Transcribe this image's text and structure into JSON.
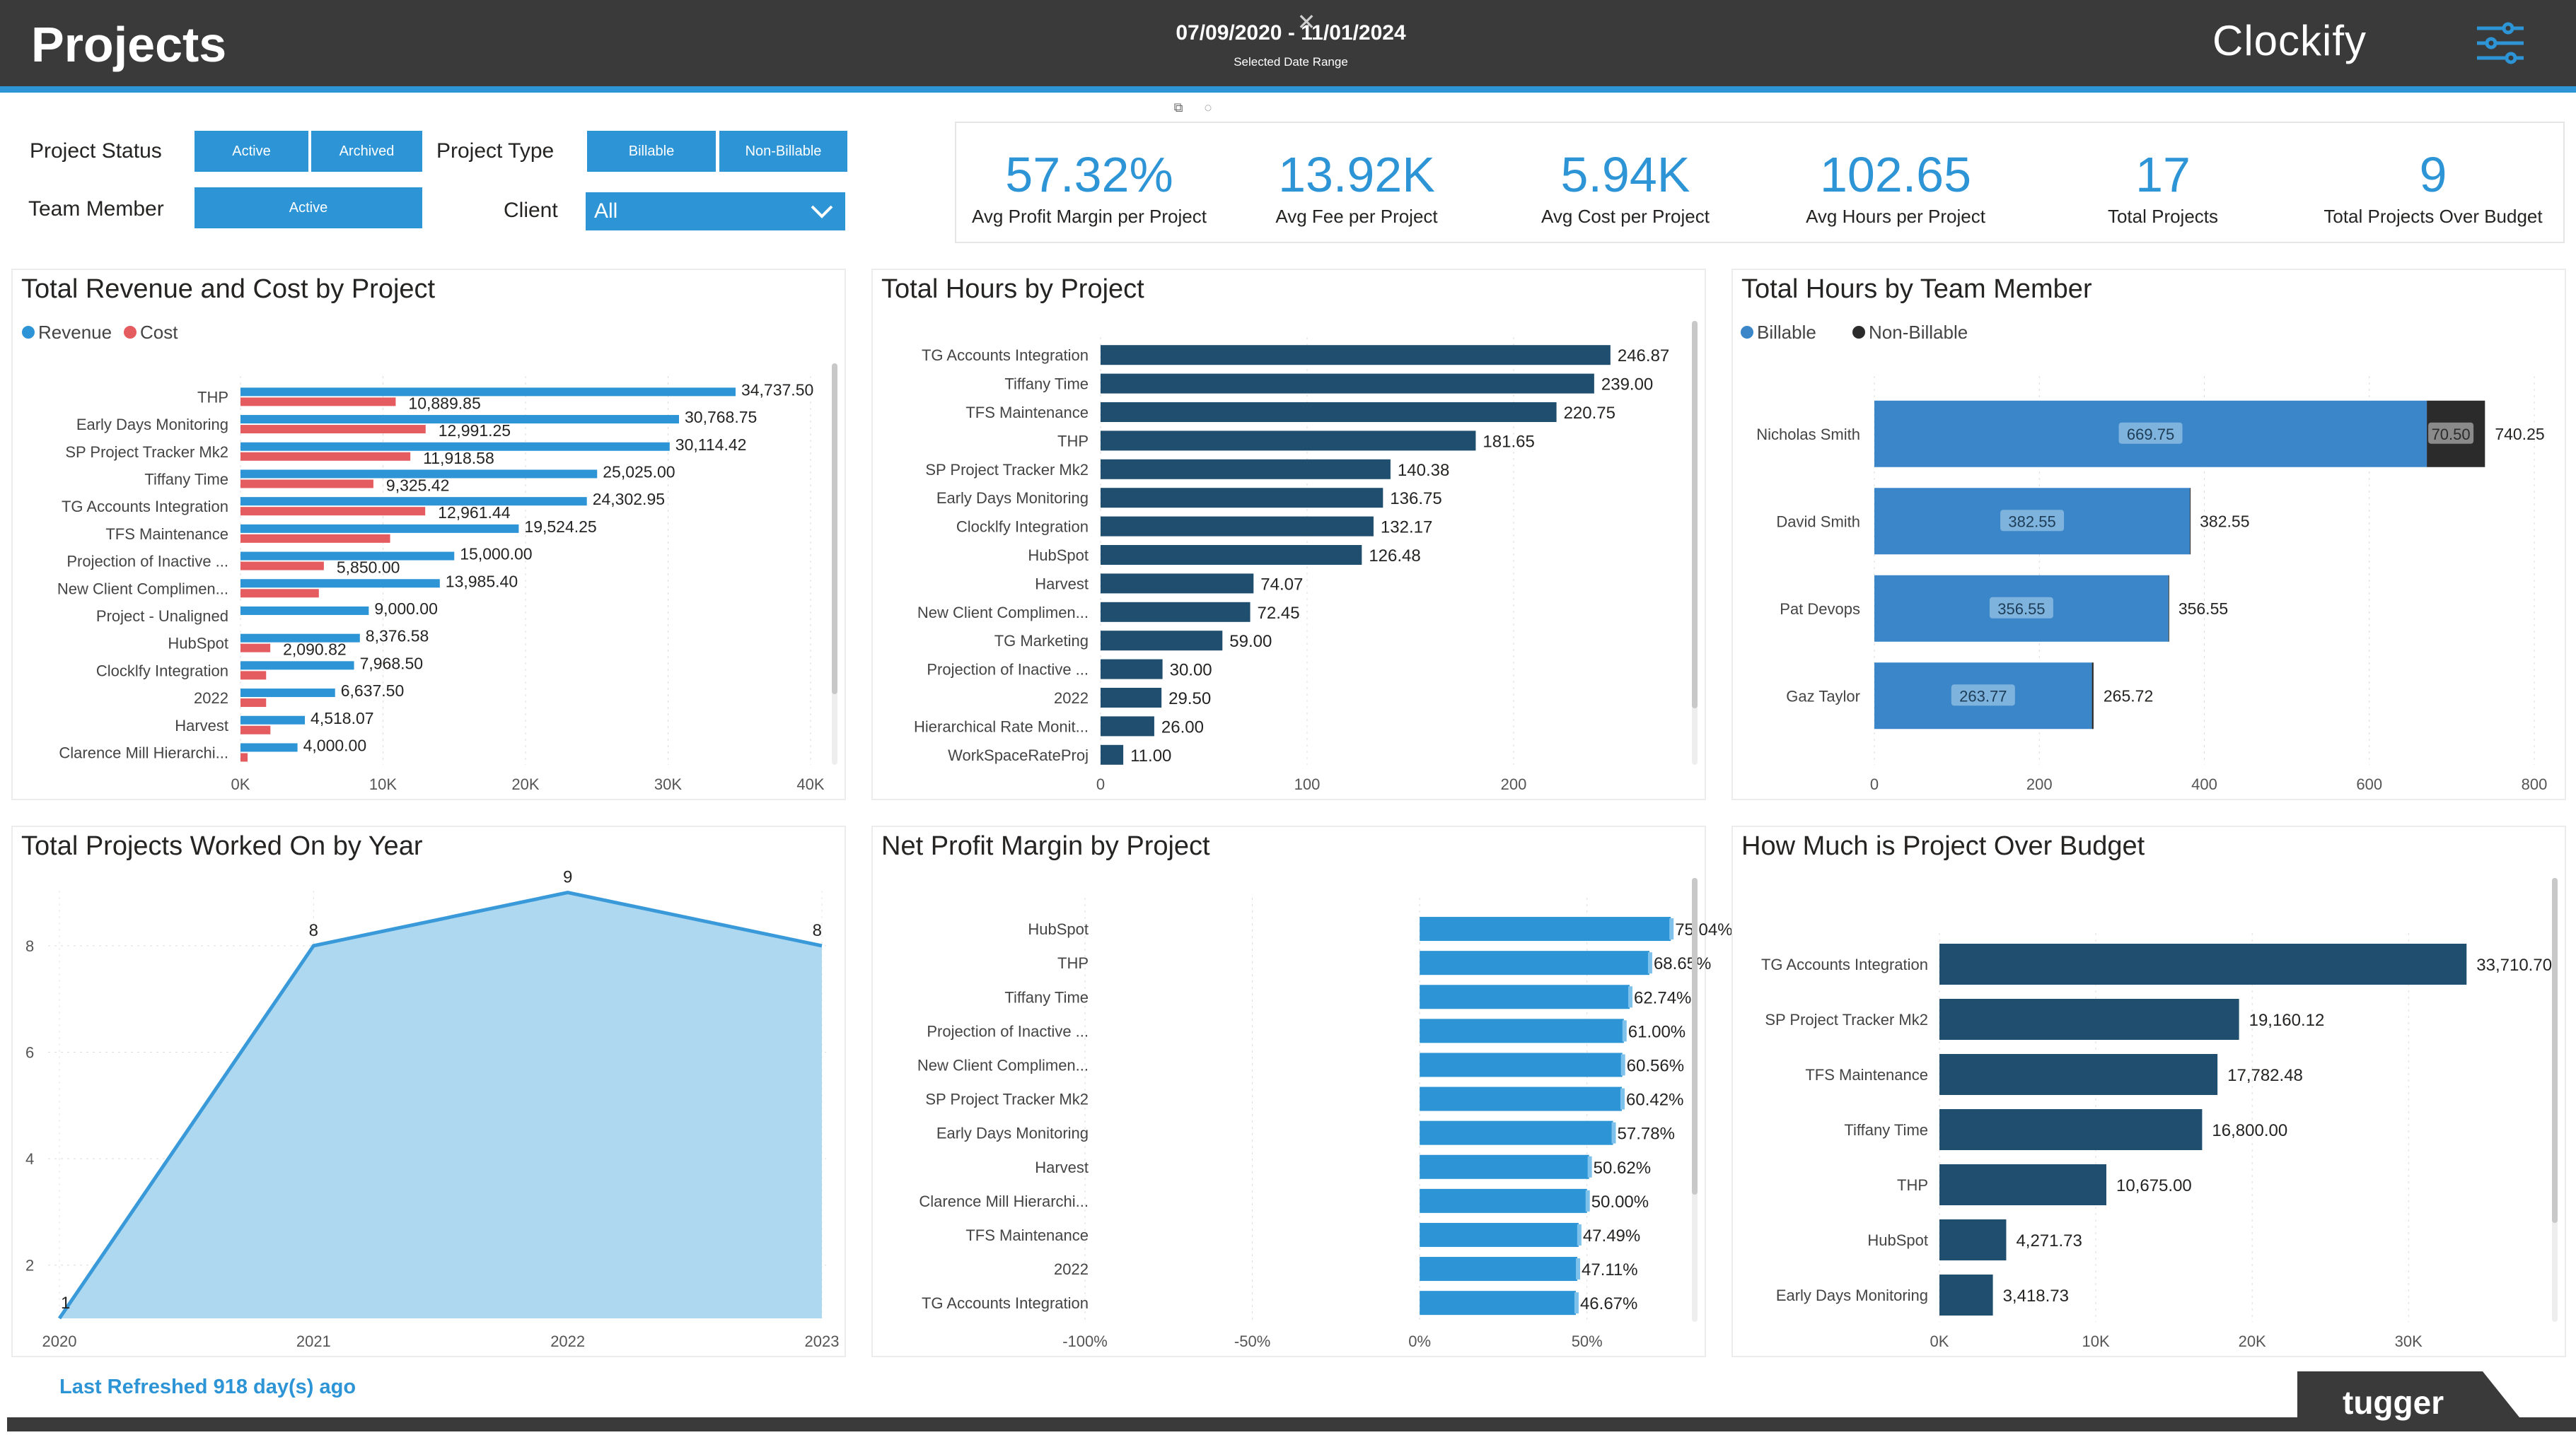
{
  "header": {
    "title": "Projects",
    "date_range": "07/09/2020 - 11/01/2024",
    "date_range_label": "Selected Date Range",
    "brand": "Clockify",
    "close_glyph": "✕",
    "filter_icon": "filter-sliders-icon",
    "colors": {
      "bar": "#3a3a3a",
      "accent": "#2d94d6"
    }
  },
  "slicers": {
    "project_status": {
      "label": "Project Status",
      "options": [
        "Active",
        "Archived"
      ]
    },
    "project_type": {
      "label": "Project Type",
      "options": [
        "Billable",
        "Non-Billable"
      ]
    },
    "team_member": {
      "label": "Team Member",
      "options": [
        "Active"
      ]
    },
    "client": {
      "label": "Client",
      "value": "All"
    }
  },
  "kpis": [
    {
      "value": "57.32%",
      "label": "Avg Profit Margin per Project"
    },
    {
      "value": "13.92K",
      "label": "Avg Fee per Project"
    },
    {
      "value": "5.94K",
      "label": "Avg Cost per Project"
    },
    {
      "value": "102.65",
      "label": "Avg Hours per Project"
    },
    {
      "value": "17",
      "label": "Total Projects"
    },
    {
      "value": "9",
      "label": "Total Projects Over Budget"
    }
  ],
  "footer": {
    "refresh": "Last Refreshed 918 day(s) ago",
    "logo": "tugger"
  },
  "chart_data": [
    {
      "id": "rev-cost",
      "type": "bar",
      "orientation": "horizontal",
      "title": "Total Revenue and Cost by Project",
      "legend": [
        "Revenue",
        "Cost"
      ],
      "colors": {
        "Revenue": "#2d94d6",
        "Cost": "#e45c5f"
      },
      "categories": [
        "THP",
        "Early Days Monitoring",
        "SP Project Tracker Mk2",
        "Tiffany Time",
        "TG Accounts Integration",
        "TFS Maintenance",
        "Projection of Inactive ...",
        "New Client Complimen...",
        "Project - Unaligned",
        "HubSpot",
        "Clocklfy Integration",
        "2022",
        "Harvest",
        "Clarence Mill Hierarchi..."
      ],
      "series": [
        {
          "name": "Revenue",
          "values": [
            34737.5,
            30768.75,
            30114.42,
            25025.0,
            24302.95,
            19524.25,
            15000.0,
            13985.4,
            9000.0,
            8376.58,
            7968.5,
            6637.5,
            4518.07,
            4000.0
          ],
          "labels": [
            "34,737.50",
            "30,768.75",
            "30,114.42",
            "25,025.00",
            "24,302.95",
            "19,524.25",
            "15,000.00",
            "13,985.40",
            "9,000.00",
            "8,376.58",
            "7,968.50",
            "6,637.50",
            "4,518.07",
            "4,000.00"
          ]
        },
        {
          "name": "Cost",
          "values": [
            10889.85,
            12991.25,
            11918.58,
            9325.42,
            12961.44,
            10500,
            5850.0,
            5500,
            0,
            2090.82,
            1800,
            1800,
            2100,
            500
          ],
          "labels": [
            "10,889.85",
            "12,991.25",
            "11,918.58",
            "9,325.42",
            "12,961.44",
            "",
            "5,850.00",
            "",
            "",
            "2,090.82",
            "",
            "",
            "",
            ""
          ]
        }
      ],
      "xlim": [
        0,
        40000
      ],
      "xticks": [
        "0K",
        "10K",
        "20K",
        "30K",
        "40K"
      ]
    },
    {
      "id": "hours-project",
      "type": "bar",
      "orientation": "horizontal",
      "title": "Total Hours by Project",
      "colors": {
        "bar": "#1f4e6e"
      },
      "categories": [
        "TG Accounts Integration",
        "Tiffany Time",
        "TFS Maintenance",
        "THP",
        "SP Project Tracker Mk2",
        "Early Days Monitoring",
        "Clocklfy Integration",
        "HubSpot",
        "Harvest",
        "New Client Complimen...",
        "TG Marketing",
        "Projection of Inactive ...",
        "2022",
        "Hierarchical Rate Monit...",
        "WorkSpaceRateProj"
      ],
      "values": [
        246.87,
        239.0,
        220.75,
        181.65,
        140.38,
        136.75,
        132.17,
        126.48,
        74.07,
        72.45,
        59.0,
        30.0,
        29.5,
        26.0,
        11.0
      ],
      "labels": [
        "246.87",
        "239.00",
        "220.75",
        "181.65",
        "140.38",
        "136.75",
        "132.17",
        "126.48",
        "74.07",
        "72.45",
        "59.00",
        "30.00",
        "29.50",
        "26.00",
        "11.00"
      ],
      "xlim": [
        0,
        250
      ],
      "xticks": [
        "0",
        "100",
        "200"
      ]
    },
    {
      "id": "hours-member",
      "type": "bar",
      "orientation": "horizontal",
      "stacked": true,
      "title": "Total Hours by Team Member",
      "legend": [
        "Billable",
        "Non-Billable"
      ],
      "colors": {
        "Billable": "#3a86c8",
        "Non-Billable": "#2b2b2b"
      },
      "categories": [
        "Nicholas Smith",
        "David Smith",
        "Pat Devops",
        "Gaz Taylor"
      ],
      "series": [
        {
          "name": "Billable",
          "values": [
            669.75,
            382.55,
            356.55,
            263.77
          ],
          "labels": [
            "669.75",
            "382.55",
            "356.55",
            "263.77"
          ]
        },
        {
          "name": "Non-Billable",
          "values": [
            70.5,
            0,
            0,
            1.95
          ],
          "labels": [
            "70.50",
            "",
            "",
            ""
          ]
        }
      ],
      "totals": [
        "740.25",
        "382.55",
        "356.55",
        "265.72"
      ],
      "xlim": [
        0,
        800
      ],
      "xticks": [
        "0",
        "200",
        "400",
        "600",
        "800"
      ]
    },
    {
      "id": "projects-year",
      "type": "area",
      "title": "Total Projects Worked On by Year",
      "colors": {
        "fill": "#add8f0",
        "line": "#3a9ad9"
      },
      "x": [
        "2020",
        "2021",
        "2022",
        "2023"
      ],
      "values": [
        1,
        8,
        9,
        8
      ],
      "labels": [
        "1",
        "8",
        "9",
        "8"
      ],
      "ylim": [
        1,
        9.3
      ],
      "yticks": [
        "2",
        "4",
        "6",
        "8"
      ]
    },
    {
      "id": "net-margin",
      "type": "bar",
      "orientation": "horizontal",
      "title": "Net Profit Margin by Project",
      "colors": {
        "bar": "#2d94d6"
      },
      "categories": [
        "HubSpot",
        "THP",
        "Tiffany Time",
        "Projection of Inactive ...",
        "New Client Complimen...",
        "SP Project Tracker Mk2",
        "Early Days Monitoring",
        "Harvest",
        "Clarence Mill Hierarchi...",
        "TFS Maintenance",
        "2022",
        "TG Accounts Integration"
      ],
      "values": [
        75.04,
        68.65,
        62.74,
        61.0,
        60.56,
        60.42,
        57.78,
        50.62,
        50.0,
        47.49,
        47.11,
        46.67
      ],
      "labels": [
        "75.04%",
        "68.65%",
        "62.74%",
        "61.00%",
        "60.56%",
        "60.42%",
        "57.78%",
        "50.62%",
        "50.00%",
        "47.49%",
        "47.11%",
        "46.67%"
      ],
      "xlim": [
        -100,
        75
      ],
      "xticks": [
        "-100%",
        "-50%",
        "0%",
        "50%"
      ]
    },
    {
      "id": "over-budget",
      "type": "bar",
      "orientation": "horizontal",
      "title": "How Much is Project Over Budget",
      "colors": {
        "bar": "#1f4e6e"
      },
      "categories": [
        "TG Accounts Integration",
        "SP Project Tracker Mk2",
        "TFS Maintenance",
        "Tiffany Time",
        "THP",
        "HubSpot",
        "Early Days Monitoring"
      ],
      "values": [
        33710.7,
        19160.12,
        17782.48,
        16800.0,
        10675.0,
        4271.73,
        3418.73
      ],
      "labels": [
        "33,710.70",
        "19,160.12",
        "17,782.48",
        "16,800.00",
        "10,675.00",
        "4,271.73",
        "3,418.73"
      ],
      "xlim": [
        0,
        37000
      ],
      "xticks": [
        "0K",
        "10K",
        "20K",
        "30K"
      ]
    }
  ]
}
